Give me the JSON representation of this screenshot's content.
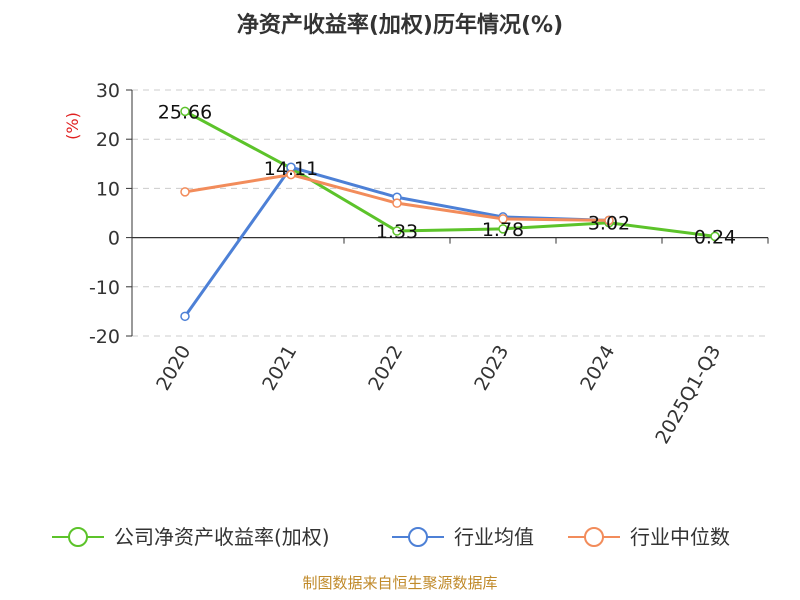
{
  "chart_data": {
    "type": "line",
    "title": "净资产收益率(加权)历年情况(%)",
    "ylabel": "(%)",
    "xlabel": "",
    "categories": [
      "2020",
      "2021",
      "2022",
      "2023",
      "2024",
      "2025Q1-Q3"
    ],
    "ylim": [
      -20,
      30
    ],
    "yticks": [
      30,
      20,
      10,
      0,
      -10,
      -20
    ],
    "grid": "horizontal-dashed",
    "legend_position": "bottom",
    "series": [
      {
        "name": "公司净资产收益率(加权)",
        "color": "#5cc32a",
        "values": [
          25.66,
          14.11,
          1.33,
          1.78,
          3.02,
          0.24
        ],
        "data_labels": [
          "25.66",
          "14.11",
          "1.33",
          "1.78",
          "3.02",
          "0.24"
        ]
      },
      {
        "name": "行业均值",
        "color": "#4d80d6",
        "values": [
          -16.0,
          14.3,
          8.2,
          4.2,
          3.5,
          null
        ]
      },
      {
        "name": "行业中位数",
        "color": "#f28c5b",
        "values": [
          9.3,
          12.8,
          7.0,
          3.8,
          3.5,
          null
        ]
      }
    ],
    "source": "制图数据来自恒生聚源数据库"
  }
}
